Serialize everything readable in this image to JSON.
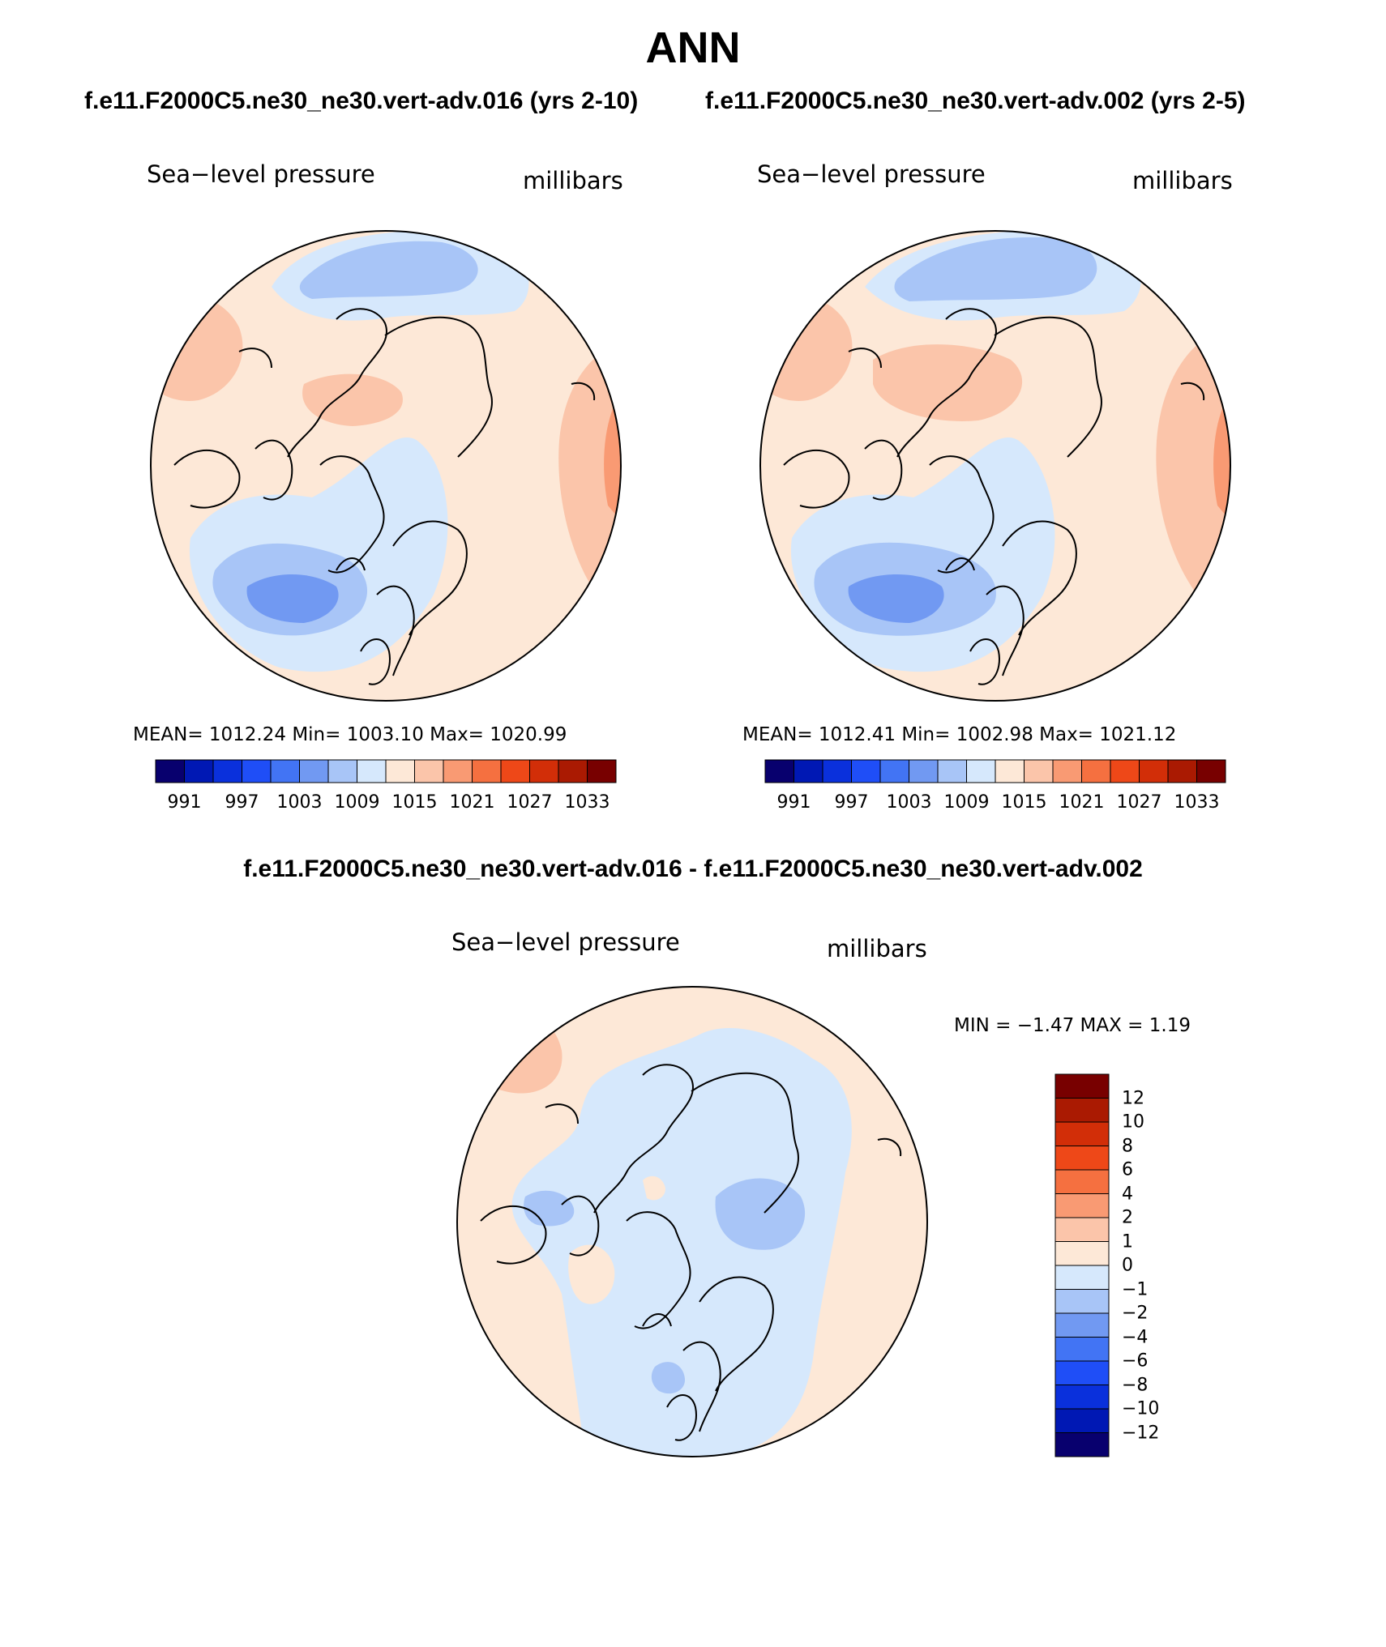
{
  "figure": {
    "title": "ANN",
    "case1_title": "f.e11.F2000C5.ne30_ne30.vert-adv.016 (yrs 2-10)",
    "case2_title": "f.e11.F2000C5.ne30_ne30.vert-adv.002 (yrs 2-5)",
    "diff_title": "f.e11.F2000C5.ne30_ne30.vert-adv.016 - f.e11.F2000C5.ne30_ne30.vert-adv.002"
  },
  "panels": [
    {
      "variable": "Sea−level pressure",
      "units": "millibars",
      "stats": "MEAN=  1012.24   Min=  1003.10   Max=  1020.99",
      "colorbar_ticks": [
        "991",
        "997",
        "1003",
        "1009",
        "1015",
        "1021",
        "1027",
        "1033"
      ]
    },
    {
      "variable": "Sea−level pressure",
      "units": "millibars",
      "stats": "MEAN=  1012.41   Min=  1002.98   Max=  1021.12",
      "colorbar_ticks": [
        "991",
        "997",
        "1003",
        "1009",
        "1015",
        "1021",
        "1027",
        "1033"
      ]
    },
    {
      "variable": "Sea−level pressure",
      "units": "millibars",
      "stats": "MIN =   −1.47  MAX =     1.19",
      "colorbar_ticks": [
        "12",
        "10",
        "8",
        "6",
        "4",
        "2",
        "1",
        "0",
        "−1",
        "−2",
        "−4",
        "−6",
        "−8",
        "−10",
        "−12"
      ]
    }
  ],
  "colors": {
    "abs_scale": [
      "#08006e",
      "#0018b4",
      "#0a30dc",
      "#1f4ef7",
      "#4274f4",
      "#7199f2",
      "#a8c5f7",
      "#d6e8fc",
      "#fde8d7",
      "#fbc5aa",
      "#f99a73",
      "#f57040",
      "#ee4818",
      "#d22e08",
      "#aa1a02",
      "#780000"
    ],
    "diff_scale": [
      "#780000",
      "#aa1a02",
      "#d22e08",
      "#ee4818",
      "#f57040",
      "#f99a73",
      "#fbc5aa",
      "#fde8d7",
      "#d6e8fc",
      "#a8c5f7",
      "#7199f2",
      "#4274f4",
      "#1f4ef7",
      "#0a30dc",
      "#0018b4",
      "#08006e"
    ]
  }
}
